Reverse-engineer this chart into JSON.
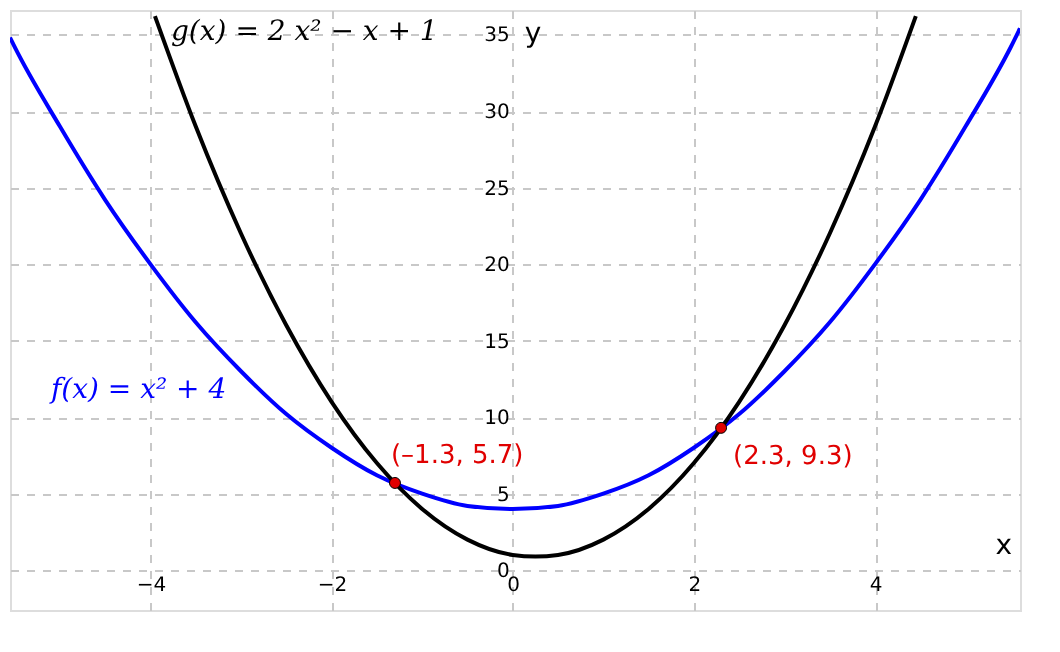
{
  "chart_data": {
    "type": "line",
    "xlabel": "x",
    "ylabel": "y",
    "xlim": [
      -5.55,
      5.6
    ],
    "ylim": [
      -2.6,
      36.6
    ],
    "xticks": [
      -4,
      -2,
      0,
      2,
      4
    ],
    "yticks": [
      0,
      5,
      10,
      15,
      20,
      25,
      30,
      35
    ],
    "grid": true,
    "legend": false,
    "marker": "none",
    "line_style": "solid",
    "series": [
      {
        "name": "f(x) = x² + 4",
        "color": "#0000ff",
        "x": [
          -5.55,
          -5.5,
          -5,
          -4.5,
          -4,
          -3.5,
          -3,
          -2.5,
          -2,
          -1.5,
          -1,
          -0.5,
          0,
          0.5,
          1,
          1.5,
          2,
          2.5,
          3,
          3.5,
          4,
          4.5,
          5,
          5.5,
          5.6
        ],
        "values": [
          34.8,
          34.2,
          29,
          24.2,
          20,
          16.2,
          13,
          10.2,
          8,
          6.2,
          5,
          4.2,
          4,
          4.2,
          5,
          6.2,
          8,
          10.2,
          13,
          16.2,
          20,
          24.2,
          29,
          34.2,
          35.4
        ]
      },
      {
        "name": "g(x)  =  2 x² − x + 1",
        "color": "#000000",
        "x": [
          -3.95,
          -3.5,
          -3,
          -2.5,
          -2,
          -1.5,
          -1,
          -0.5,
          0,
          0.25,
          0.5,
          1,
          1.5,
          2,
          2.5,
          3,
          3.5,
          4,
          4.45
        ],
        "values": [
          36.2,
          29,
          22,
          16,
          11,
          7,
          4,
          2,
          1,
          0.9,
          1,
          2,
          4,
          7,
          11,
          16,
          22,
          29,
          36.2
        ]
      },
      {
        "color": "#e00000",
        "type": "scatter",
        "marker": "circle",
        "x": [
          -1.3,
          2.3
        ],
        "values": [
          5.7,
          9.3
        ],
        "value_labels": [
          "(–1.3, 5.7)",
          "(2.3, 9.3)"
        ]
      }
    ]
  }
}
